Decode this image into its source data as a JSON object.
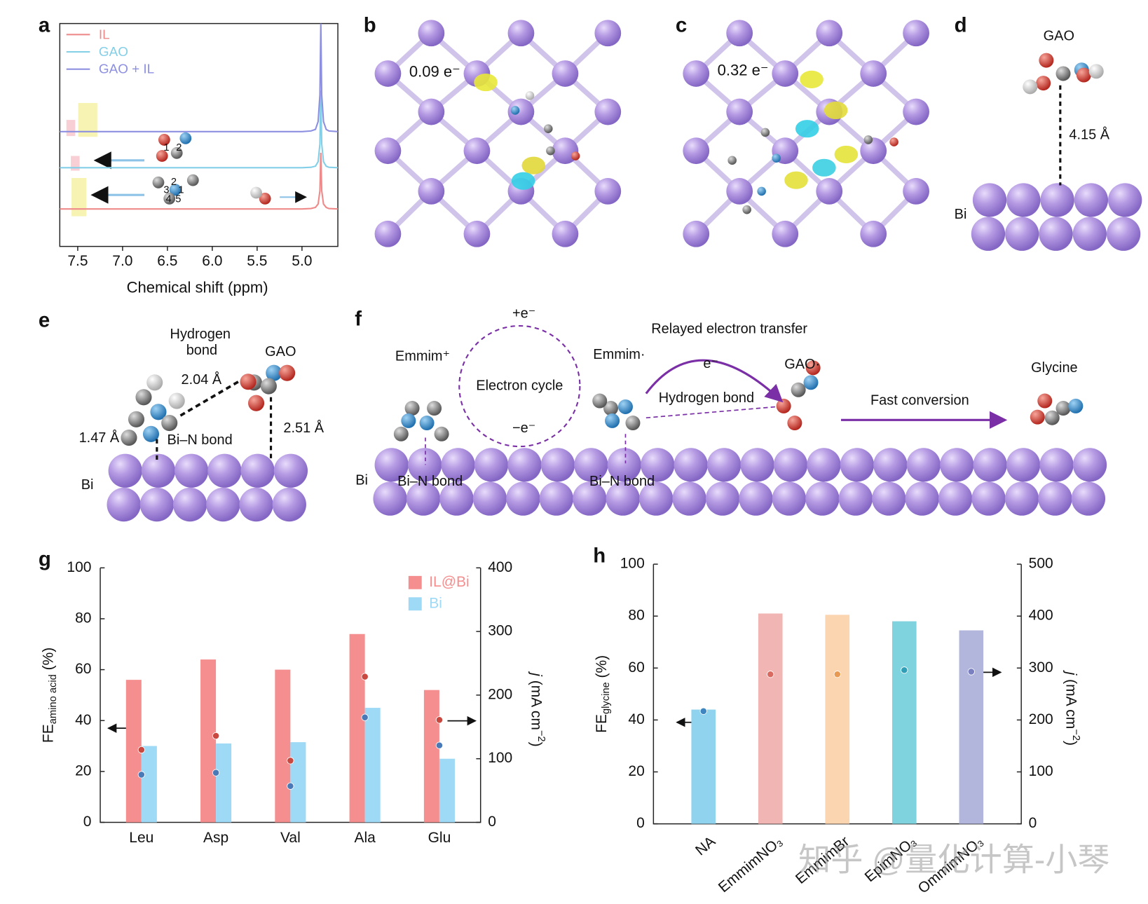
{
  "panel_letters": [
    "a",
    "b",
    "c",
    "d",
    "e",
    "f",
    "g",
    "h"
  ],
  "panel_b": {
    "charge": "0.09 e⁻"
  },
  "panel_c": {
    "charge": "0.32 e⁻"
  },
  "panel_d": {
    "molecule": "GAO",
    "distance": "4.15 Å",
    "surface": "Bi"
  },
  "panel_e": {
    "hbond": [
      "Hydrogen",
      "bond"
    ],
    "molecule": "GAO",
    "distance_hbond": "2.04 Å",
    "distance_bin": "1.47 Å",
    "bin_label": "Bi–N bond",
    "distance_gao": "2.51 Å",
    "surface": "Bi"
  },
  "panel_f": {
    "emmim_plus": "Emmim⁺",
    "cycle": "Electron cycle",
    "plus_e": "+e⁻",
    "minus_e": "−e⁻",
    "emmim_rad": "Emmim·",
    "relay": "Relayed electron transfer",
    "e": "e⁻",
    "gao_rad": "GAO·",
    "hbond": "Hydrogen bond",
    "fast": "Fast conversion",
    "glycine": "Glycine",
    "surface": "Bi",
    "bin1": "Bi–N bond",
    "bin2": "Bi–N bond"
  },
  "watermark": "知乎 @量化计算-小琴",
  "chart_data": [
    {
      "type": "line",
      "xlabel": "Chemical shift (ppm)",
      "x": [
        7.7,
        5.0,
        4.9,
        4.85,
        4.82,
        4.8,
        4.79,
        4.78,
        4.76,
        4.73,
        4.7,
        4.6
      ],
      "series": [
        {
          "name": "IL",
          "color": "#ef8a8a",
          "values": [
            16.8,
            16.8,
            17,
            17.5,
            19,
            25,
            42,
            25,
            19,
            17.5,
            17,
            16.8
          ]
        },
        {
          "name": "GAO",
          "color": "#84cfe8",
          "values": [
            35.3,
            35.3,
            35.5,
            36,
            38,
            46,
            70,
            46,
            38,
            36,
            35.5,
            35.3
          ]
        },
        {
          "name": "GAO + IL",
          "color": "#8d90e0",
          "values": [
            51.5,
            51.5,
            51.8,
            52.5,
            56,
            68,
            100,
            68,
            56,
            52.5,
            51.8,
            51.5
          ]
        }
      ],
      "xlim": [
        7.7,
        4.6
      ],
      "xticks": [
        7.5,
        {
          "value": 7,
          "label": "7.0"
        },
        6.5,
        {
          "value": 6,
          "label": "6.0"
        },
        5.5,
        {
          "value": 5,
          "label": "5.0"
        }
      ],
      "ylim": [
        0,
        100
      ],
      "legend": "upper left",
      "molecule_labels": [
        [
          "1",
          "2"
        ],
        [
          "2",
          "3",
          "1",
          "4",
          "5"
        ]
      ]
    },
    {
      "type": "bar",
      "categories": [
        "Leu",
        "Asp",
        "Val",
        "Ala",
        "Glu"
      ],
      "series": [
        {
          "name": "IL@Bi",
          "color": "#f58f8f",
          "values": [
            56,
            64,
            60,
            74,
            52
          ]
        },
        {
          "name": "Bi",
          "color": "#9ed9f6",
          "values": [
            30,
            31,
            31.5,
            45,
            25
          ]
        },
        {
          "color": "#c9483f",
          "values": [
            114,
            136,
            97,
            229,
            161
          ],
          "axis": "y2"
        },
        {
          "color": "#4a79b8",
          "values": [
            75,
            78,
            57,
            165,
            121
          ],
          "axis": "y2"
        }
      ],
      "ylim": [
        0,
        100
      ],
      "yticks": [
        0,
        20,
        40,
        60,
        80,
        100
      ],
      "y2lim": [
        0,
        400
      ],
      "y2ticks": [
        0,
        100,
        200,
        300,
        400
      ],
      "ylabel": {
        "main": "FE",
        "sub": "amino acid",
        "unit": " (%)"
      },
      "y2label": {
        "main": "j",
        "unit": " (mA cm",
        "sup": "−2",
        "close": ")"
      },
      "legend": "upper right"
    },
    {
      "type": "bar",
      "categories": [
        "NA",
        "EmmimNO₃",
        "EmmimBr",
        "EpimNO₃",
        "OmmimNO₃"
      ],
      "series": [
        {
          "colors": [
            "#8fd3ef",
            "#f1b6b3",
            "#fbd4b0",
            "#7fd3de",
            "#b2b6dc"
          ],
          "values": [
            44,
            81,
            80.5,
            78,
            74.5
          ]
        },
        {
          "colors": [
            "#3f86c0",
            "#d86a62",
            "#e89a52",
            "#2f9fb8",
            "#7a80c0"
          ],
          "values": [
            217,
            288,
            288,
            296,
            293
          ],
          "axis": "y2"
        }
      ],
      "ylim": [
        0,
        100
      ],
      "yticks": [
        0,
        20,
        40,
        60,
        80,
        100
      ],
      "y2lim": [
        0,
        500
      ],
      "y2ticks": [
        0,
        100,
        200,
        300,
        400,
        500
      ],
      "ylabel": {
        "main": "FE",
        "sub": "glycine",
        "unit": " (%)"
      },
      "y2label": {
        "main": "j",
        "unit": " (mA cm",
        "sup": "−2",
        "close": ")"
      }
    }
  ]
}
